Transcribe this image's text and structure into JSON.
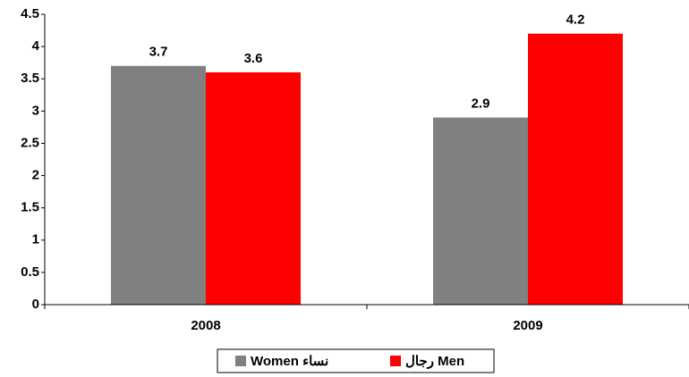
{
  "chart_data": {
    "type": "bar",
    "categories": [
      "2008",
      "2009"
    ],
    "series": [
      {
        "name": "Women نساء",
        "color": "#808080",
        "values": [
          3.7,
          2.9
        ]
      },
      {
        "name": "رجال Men",
        "color": "#ff0000",
        "values": [
          3.6,
          4.2
        ]
      }
    ],
    "ylim": [
      0,
      4.5
    ],
    "yticks": [
      0,
      0.5,
      1,
      1.5,
      2,
      2.5,
      3,
      3.5,
      4,
      4.5
    ],
    "grid": false,
    "legend": "bottom"
  }
}
